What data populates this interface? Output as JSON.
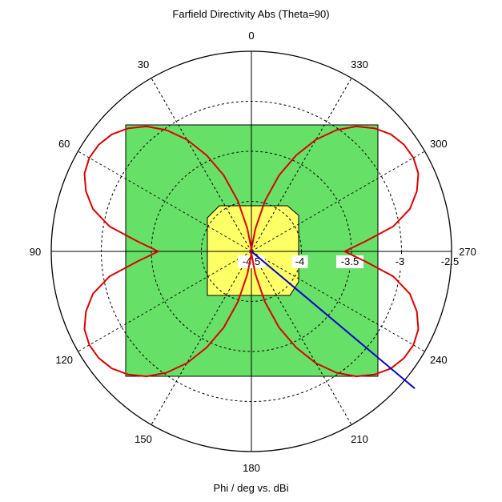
{
  "chart_data": {
    "type": "polar",
    "title": "Farfield Directivity Abs (Theta=90)",
    "xlabel": "Phi / deg vs. dBi",
    "radial_range": [
      -4.5,
      -2.5
    ],
    "radial_ticks": [
      -4.5,
      -4,
      -3.5,
      -3,
      -2.5
    ],
    "radial_tick_labels": [
      "-4.5",
      "-4",
      "-3.5",
      "-3",
      "-2.5"
    ],
    "angle_ticks": [
      0,
      30,
      60,
      90,
      120,
      150,
      180,
      210,
      240,
      270,
      300,
      330
    ],
    "angle_tick_labels": [
      "0",
      "30",
      "60",
      "90",
      "120",
      "150",
      "180",
      "210",
      "240",
      "270",
      "300",
      "330"
    ],
    "angle_direction": "counterclockwise",
    "zero_location": "top",
    "grid": true,
    "series": [
      {
        "color": "#dd0000",
        "phi": [
          0,
          5,
          10,
          15,
          20,
          25,
          30,
          35,
          40,
          45,
          50,
          55,
          60,
          65,
          70,
          75,
          80,
          85,
          90,
          95,
          100,
          105,
          110,
          115,
          120,
          125,
          130,
          135,
          140,
          145,
          150,
          155,
          160,
          165,
          170,
          175,
          180,
          185,
          190,
          195,
          200,
          205,
          210,
          215,
          220,
          225,
          230,
          235,
          240,
          245,
          250,
          255,
          260,
          265,
          270,
          275,
          280,
          285,
          290,
          295,
          300,
          305,
          310,
          315,
          320,
          325,
          330,
          335,
          340,
          345,
          350,
          355
        ],
        "dbi": [
          -4.5,
          -4.46,
          -4.27,
          -3.98,
          -3.69,
          -3.44,
          -3.21,
          -3.02,
          -2.87,
          -2.76,
          -2.68,
          -2.64,
          -2.63,
          -2.66,
          -2.74,
          -2.86,
          -3.06,
          -3.36,
          -3.57,
          -3.36,
          -3.06,
          -2.86,
          -2.74,
          -2.66,
          -2.63,
          -2.64,
          -2.68,
          -2.76,
          -2.87,
          -3.02,
          -3.21,
          -3.44,
          -3.69,
          -3.98,
          -4.27,
          -4.46,
          -4.5,
          -4.46,
          -4.27,
          -3.98,
          -3.69,
          -3.44,
          -3.21,
          -3.02,
          -2.87,
          -2.76,
          -2.68,
          -2.64,
          -2.63,
          -2.66,
          -2.74,
          -2.86,
          -3.06,
          -3.36,
          -3.57,
          -3.36,
          -3.06,
          -2.86,
          -2.74,
          -2.66,
          -2.63,
          -2.64,
          -2.68,
          -2.76,
          -2.87,
          -3.02,
          -3.21,
          -3.44,
          -3.69,
          -3.98,
          -4.27,
          -4.46
        ]
      }
    ],
    "marker_line": {
      "color": "#0000cc",
      "phi": 230,
      "dbi": -2.37
    },
    "backgrounds": {
      "outer_square_color": "#66e066",
      "inner_octagon_color": "#ffff66"
    }
  }
}
